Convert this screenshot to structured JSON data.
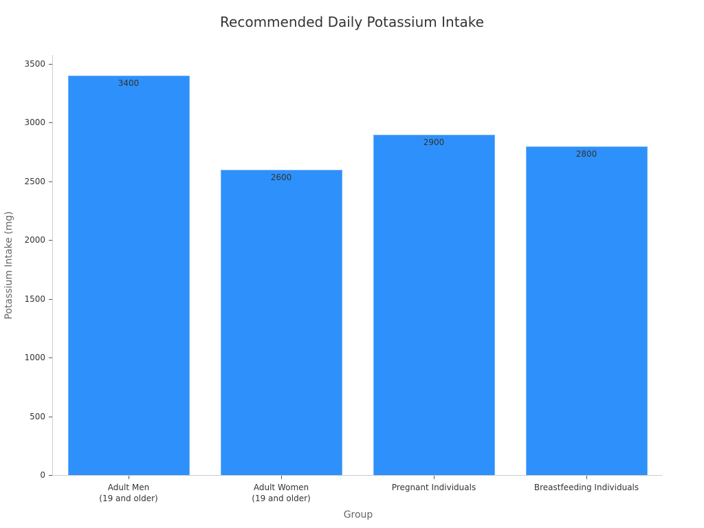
{
  "chart_data": {
    "type": "bar",
    "title": "Recommended Daily Potassium Intake",
    "xlabel": "Group",
    "ylabel": "Potassium Intake (mg)",
    "categories": [
      [
        "Adult Men",
        "(19 and older)"
      ],
      [
        "Adult Women",
        "(19 and older)"
      ],
      [
        "Pregnant Individuals"
      ],
      [
        "Breastfeeding Individuals"
      ]
    ],
    "values": [
      3400,
      2600,
      2900,
      2800
    ],
    "value_labels": [
      "3400",
      "2600",
      "2900",
      "2800"
    ],
    "yticks": [
      "0",
      "500",
      "1000",
      "1500",
      "2000",
      "2500",
      "3000",
      "3500"
    ],
    "ylim": [
      0,
      3570
    ],
    "grid": false,
    "legend": null,
    "bar_color": "#2e90fa"
  }
}
